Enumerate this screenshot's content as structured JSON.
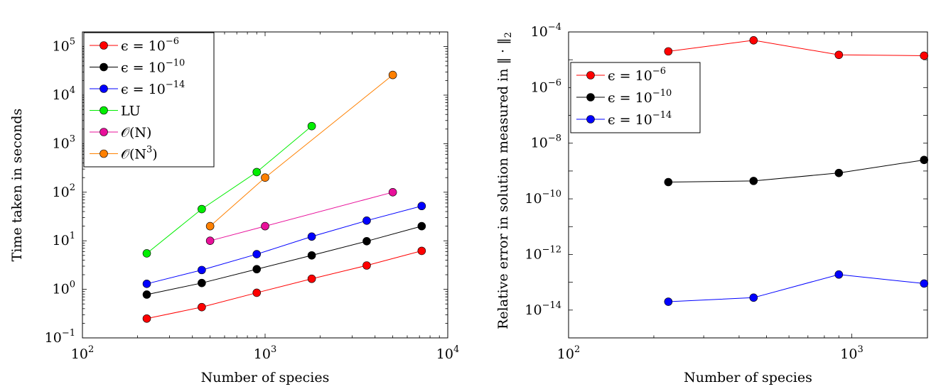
{
  "chart_data": [
    {
      "type": "line",
      "xlabel": "Number of species",
      "ylabel": "Time taken in seconds",
      "xscale": "log",
      "yscale": "log",
      "xlim": [
        100,
        10000
      ],
      "ylim": [
        0.1,
        200000
      ],
      "xticks": [
        {
          "value": 100,
          "base": "10",
          "exp": "2"
        },
        {
          "value": 1000,
          "base": "10",
          "exp": "3"
        },
        {
          "value": 10000,
          "base": "10",
          "exp": "4"
        }
      ],
      "yticks": [
        {
          "value": 0.1,
          "base": "10",
          "exp": "−1"
        },
        {
          "value": 1,
          "base": "10",
          "exp": "0"
        },
        {
          "value": 10,
          "base": "10",
          "exp": "1"
        },
        {
          "value": 100,
          "base": "10",
          "exp": "2"
        },
        {
          "value": 1000,
          "base": "10",
          "exp": "3"
        },
        {
          "value": 10000,
          "base": "10",
          "exp": "4"
        },
        {
          "value": 100000,
          "base": "10",
          "exp": "5"
        }
      ],
      "grid": false,
      "legend_position": "top-left",
      "series": [
        {
          "name": "ϵ = 10−6",
          "label_main": "ϵ = 10",
          "label_exp": "−6",
          "color": "#ff0000",
          "x": [
            225,
            450,
            900,
            1800,
            3600,
            7200
          ],
          "y": [
            0.25,
            0.43,
            0.85,
            1.65,
            3.1,
            6.2
          ]
        },
        {
          "name": "ϵ = 10−10",
          "label_main": "ϵ = 10",
          "label_exp": "−10",
          "color": "#000000",
          "x": [
            225,
            450,
            900,
            1800,
            3600,
            7200
          ],
          "y": [
            0.78,
            1.35,
            2.6,
            5.0,
            9.8,
            20
          ]
        },
        {
          "name": "ϵ = 10−14",
          "label_main": "ϵ = 10",
          "label_exp": "−14",
          "color": "#0000ff",
          "x": [
            225,
            450,
            900,
            1800,
            3600,
            7200
          ],
          "y": [
            1.3,
            2.5,
            5.3,
            12.2,
            26,
            52
          ]
        },
        {
          "name": "LU",
          "label_main": "LU",
          "label_exp": "",
          "color": "#00ee00",
          "x": [
            225,
            450,
            900,
            1800
          ],
          "y": [
            5.5,
            45,
            260,
            2300
          ]
        },
        {
          "name": "O(N)",
          "label_main": "𝒪(N)",
          "label_exp": "",
          "color": "#e8109a",
          "x": [
            500,
            1000,
            5000
          ],
          "y": [
            10,
            20,
            100
          ]
        },
        {
          "name": "O(N3)",
          "label_main": "𝒪(N",
          "label_exp": "3",
          "label_tail": ")",
          "color": "#ff8000",
          "x": [
            500,
            1000,
            5000
          ],
          "y": [
            20,
            200,
            26000
          ]
        }
      ]
    },
    {
      "type": "line",
      "xlabel": "Number of species",
      "ylabel": "Relative error in solution measured in ‖ · ‖2",
      "ylabel_main": "Relative error in solution measured in ‖ · ‖",
      "ylabel_sub": "2",
      "xscale": "log",
      "yscale": "log",
      "xlim": [
        100,
        1850
      ],
      "ylim": [
        1e-15,
        0.0001
      ],
      "xticks": [
        {
          "value": 100,
          "base": "10",
          "exp": "2"
        },
        {
          "value": 1000,
          "base": "10",
          "exp": "3"
        }
      ],
      "yticks": [
        {
          "value": 0.0001,
          "base": "10",
          "exp": "−4"
        },
        {
          "value": 1e-06,
          "base": "10",
          "exp": "−6"
        },
        {
          "value": 1e-08,
          "base": "10",
          "exp": "−8"
        },
        {
          "value": 1e-10,
          "base": "10",
          "exp": "−10"
        },
        {
          "value": 1e-12,
          "base": "10",
          "exp": "−12"
        },
        {
          "value": 1e-14,
          "base": "10",
          "exp": "−14"
        }
      ],
      "grid": false,
      "legend_position": "top-left",
      "series": [
        {
          "name": "ϵ = 10−6",
          "label_main": "ϵ = 10",
          "label_exp": "−6",
          "color": "#ff0000",
          "x": [
            225,
            450,
            900,
            1800
          ],
          "y": [
            2e-05,
            5e-05,
            1.5e-05,
            1.4e-05
          ]
        },
        {
          "name": "ϵ = 10−10",
          "label_main": "ϵ = 10",
          "label_exp": "−10",
          "color": "#000000",
          "x": [
            225,
            450,
            900,
            1800
          ],
          "y": [
            4e-10,
            4.4e-10,
            8.5e-10,
            2.5e-09
          ]
        },
        {
          "name": "ϵ = 10−14",
          "label_main": "ϵ = 10",
          "label_exp": "−14",
          "color": "#0000ff",
          "x": [
            225,
            450,
            900,
            1800
          ],
          "y": [
            2e-14,
            2.8e-14,
            1.9e-13,
            9e-14
          ]
        }
      ]
    }
  ]
}
